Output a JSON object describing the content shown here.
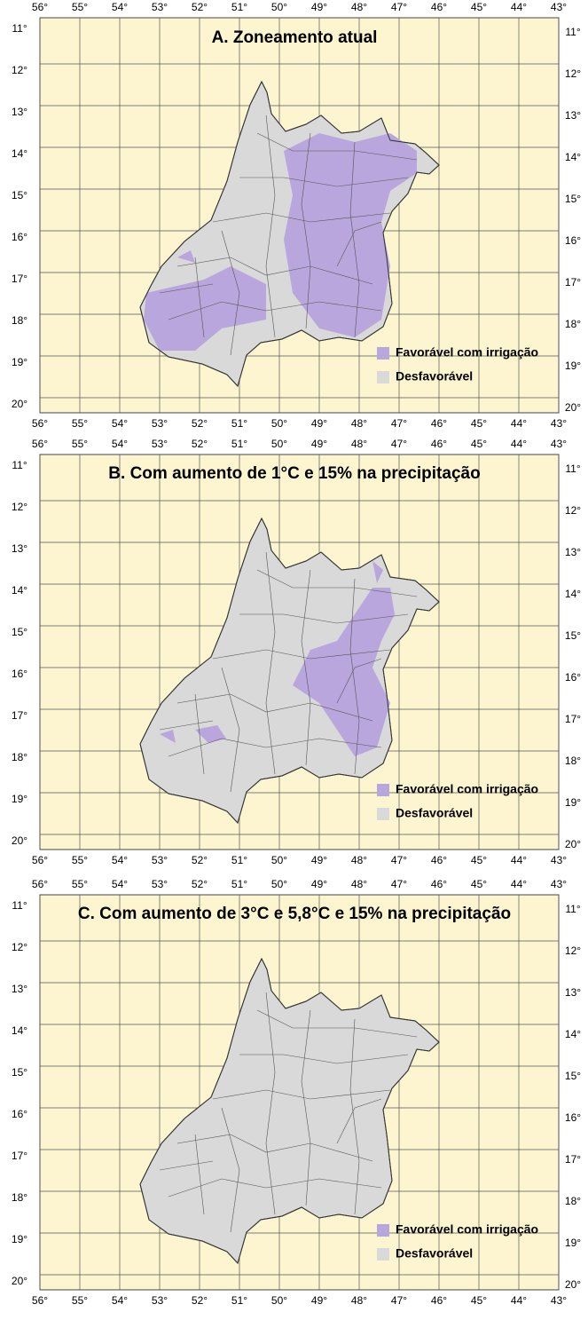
{
  "panels": [
    {
      "title": "A. Zoneamento atual",
      "lon_labels": [
        "56°",
        "55°",
        "54°",
        "53°",
        "52°",
        "51°",
        "50°",
        "49°",
        "48°",
        "47°",
        "46°",
        "45°",
        "44°",
        "43°"
      ],
      "lat_labels": [
        "11°",
        "12°",
        "13°",
        "14°",
        "15°",
        "16°",
        "17°",
        "18°",
        "19°",
        "20°"
      ],
      "legend": [
        "Favorável com irrigação",
        "Desfavorável"
      ]
    },
    {
      "title": "B. Com aumento de 1°C e 15% na precipitação",
      "lon_labels": [
        "56°",
        "55°",
        "54°",
        "53°",
        "52°",
        "51°",
        "50°",
        "49°",
        "48°",
        "47°",
        "46°",
        "45°",
        "44°",
        "43°"
      ],
      "lat_labels": [
        "11°",
        "12°",
        "13°",
        "14°",
        "15°",
        "16°",
        "17°",
        "18°",
        "19°",
        "20°"
      ],
      "legend": [
        "Favorável com irrigação",
        "Desfavorável"
      ]
    },
    {
      "title": "C. Com aumento de 3°C e 5,8°C e 15% na precipitação",
      "lon_labels": [
        "56°",
        "55°",
        "54°",
        "53°",
        "52°",
        "51°",
        "50°",
        "49°",
        "48°",
        "47°",
        "46°",
        "45°",
        "44°",
        "43°"
      ],
      "lat_labels": [
        "11°",
        "12°",
        "13°",
        "14°",
        "15°",
        "16°",
        "17°",
        "18°",
        "19°",
        "20°"
      ],
      "legend": [
        "Favorável com irrigação",
        "Desfavorável"
      ]
    }
  ]
}
